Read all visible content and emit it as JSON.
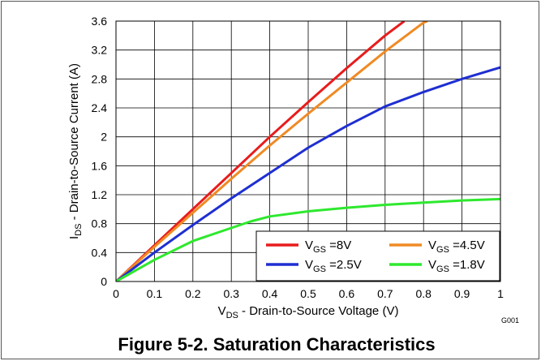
{
  "chart_data": {
    "type": "line",
    "title": "Figure 5-2. Saturation Characteristics",
    "figure_code": "G001",
    "xlabel": {
      "symbol": "V",
      "sub": "DS",
      "text": " - Drain-to-Source Voltage (V)"
    },
    "ylabel": {
      "symbol": "I",
      "sub": "DS",
      "text": " - Drain-to-Source Current (A)"
    },
    "xlim": [
      0,
      1
    ],
    "ylim": [
      0,
      3.6
    ],
    "xticks": [
      "0",
      "0.1",
      "0.2",
      "0.3",
      "0.4",
      "0.5",
      "0.6",
      "0.7",
      "0.8",
      "0.9",
      "1"
    ],
    "yticks": [
      "0",
      "0.4",
      "0.8",
      "1.2",
      "1.6",
      "2",
      "2.4",
      "2.8",
      "3.2",
      "3.6"
    ],
    "grid": true,
    "legend_position": "bottom-right",
    "series": [
      {
        "name": "=8V",
        "label_symbol": "V",
        "label_sub": "GS",
        "label_text": " =8V",
        "color": "#e81c1c",
        "x": [
          0,
          0.1,
          0.2,
          0.3,
          0.4,
          0.5,
          0.6,
          0.7,
          0.75
        ],
        "y": [
          0,
          0.5,
          1.0,
          1.5,
          2.0,
          2.48,
          2.95,
          3.4,
          3.6
        ]
      },
      {
        "name": "=4.5V",
        "label_symbol": "V",
        "label_sub": "GS",
        "label_text": " =4.5V",
        "color": "#f08a24",
        "x": [
          0,
          0.1,
          0.2,
          0.3,
          0.4,
          0.5,
          0.6,
          0.7,
          0.8,
          0.81
        ],
        "y": [
          0,
          0.48,
          0.95,
          1.42,
          1.88,
          2.32,
          2.75,
          3.18,
          3.58,
          3.6
        ]
      },
      {
        "name": "=2.5V",
        "label_symbol": "V",
        "label_sub": "GS",
        "label_text": " =2.5V",
        "color": "#1f2fd1",
        "x": [
          0,
          0.1,
          0.2,
          0.3,
          0.4,
          0.5,
          0.6,
          0.7,
          0.8,
          0.9,
          1.0
        ],
        "y": [
          0,
          0.4,
          0.78,
          1.15,
          1.5,
          1.85,
          2.15,
          2.42,
          2.62,
          2.8,
          2.96
        ]
      },
      {
        "name": "=1.8V",
        "label_symbol": "V",
        "label_sub": "GS",
        "label_text": " =1.8V",
        "color": "#2ee82e",
        "x": [
          0,
          0.1,
          0.2,
          0.3,
          0.35,
          0.4,
          0.5,
          0.6,
          0.7,
          0.8,
          0.9,
          1.0
        ],
        "y": [
          0,
          0.3,
          0.56,
          0.74,
          0.83,
          0.9,
          0.97,
          1.02,
          1.06,
          1.09,
          1.12,
          1.14
        ]
      }
    ]
  }
}
